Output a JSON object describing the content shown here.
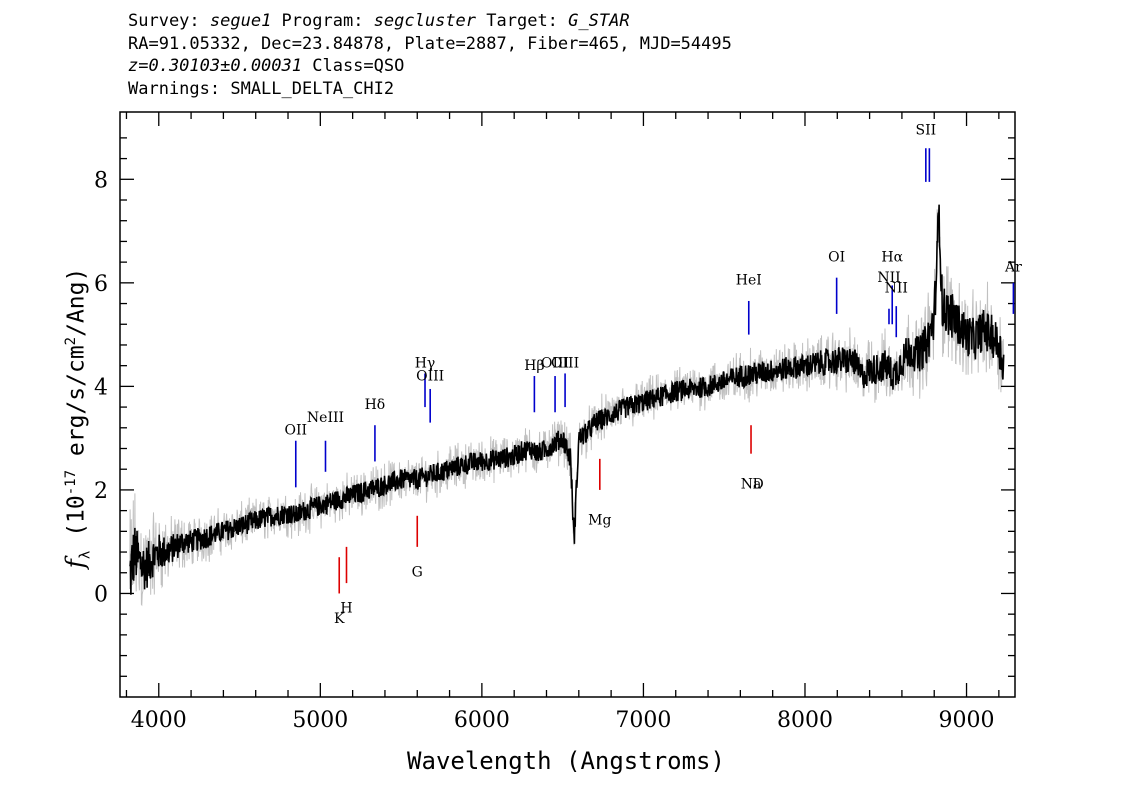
{
  "header": {
    "line1": {
      "survey_label": "Survey: ",
      "survey": "segue1",
      "program_label": " Program: ",
      "program": "segcluster",
      "target_label": " Target: ",
      "target": "G_STAR"
    },
    "line2": "RA=91.05332, Dec=23.84878, Plate=2887, Fiber=465, MJD=54495",
    "line3": {
      "z": "z=0.30103±0.00031",
      "class": " Class=QSO"
    },
    "line4": "Warnings: SMALL_DELTA_CHI2"
  },
  "colors": {
    "spectrum": "#000000",
    "error_band": "#c0c0c0",
    "emission_marker": "#0000cc",
    "absorption_marker": "#dd0000"
  },
  "chart_data": {
    "type": "line",
    "xlabel": "Wavelength (Angstroms)",
    "ylabel": {
      "symbol": "f",
      "sub": "λ",
      "text_before": " (10",
      "exp": "-17",
      "text_mid": " erg/s/cm",
      "exp2": "2",
      "text_after": "/Ang)"
    },
    "xlim": [
      3760,
      9300
    ],
    "ylim": [
      -2.0,
      9.3
    ],
    "xticks": [
      4000,
      5000,
      6000,
      7000,
      8000,
      9000
    ],
    "yticks": [
      0,
      2,
      4,
      6,
      8
    ],
    "series": [
      {
        "x": [
          3820,
          3850,
          3880,
          3920,
          3960,
          4000,
          4050,
          4100,
          4150,
          4200,
          4300,
          4400,
          4500,
          4600,
          4700,
          4800,
          4850,
          4900,
          5000,
          5100,
          5200,
          5300,
          5400,
          5500,
          5600,
          5700,
          5800,
          5900,
          6000,
          6100,
          6200,
          6250,
          6300,
          6350,
          6400,
          6450,
          6500,
          6550,
          6570,
          6600,
          6650,
          6700,
          6800,
          6900,
          7000,
          7100,
          7200,
          7300,
          7400,
          7500,
          7600,
          7700,
          7800,
          7900,
          8000,
          8100,
          8200,
          8300,
          8350,
          8400,
          8500,
          8550,
          8600,
          8650,
          8700,
          8750,
          8800,
          8830,
          8850,
          8900,
          8950,
          9000,
          9050,
          9100,
          9150,
          9200,
          9230
        ],
        "y": [
          0.3,
          0.8,
          0.6,
          0.5,
          0.7,
          0.8,
          0.8,
          0.9,
          1.0,
          1.0,
          1.1,
          1.2,
          1.3,
          1.4,
          1.5,
          1.55,
          1.5,
          1.6,
          1.7,
          1.8,
          1.9,
          2.0,
          2.1,
          2.2,
          2.2,
          2.3,
          2.4,
          2.5,
          2.55,
          2.6,
          2.65,
          2.75,
          2.8,
          2.7,
          2.8,
          2.9,
          3.0,
          2.6,
          1.0,
          3.0,
          3.1,
          3.3,
          3.45,
          3.6,
          3.7,
          3.8,
          3.9,
          3.95,
          4.0,
          4.1,
          4.2,
          4.25,
          4.3,
          4.35,
          4.4,
          4.45,
          4.5,
          4.5,
          4.2,
          4.3,
          4.4,
          4.2,
          4.5,
          4.7,
          4.6,
          4.8,
          5.3,
          7.4,
          5.5,
          5.4,
          5.2,
          5.0,
          4.9,
          5.1,
          5.0,
          4.8,
          4.4
        ],
        "error": [
          1.6,
          1.3,
          1.1,
          1.0,
          0.9,
          0.8,
          0.7,
          0.6,
          0.55,
          0.5,
          0.5,
          0.45,
          0.45,
          0.45,
          0.45,
          0.45,
          0.45,
          0.45,
          0.45,
          0.45,
          0.45,
          0.45,
          0.45,
          0.45,
          0.45,
          0.45,
          0.45,
          0.45,
          0.45,
          0.45,
          0.45,
          0.45,
          0.45,
          0.45,
          0.45,
          0.45,
          0.45,
          0.5,
          0.5,
          0.45,
          0.45,
          0.45,
          0.45,
          0.45,
          0.45,
          0.45,
          0.45,
          0.45,
          0.45,
          0.45,
          0.5,
          0.5,
          0.5,
          0.5,
          0.5,
          0.55,
          0.6,
          0.6,
          0.6,
          0.65,
          0.7,
          0.7,
          0.75,
          0.8,
          0.8,
          0.9,
          1.0,
          1.0,
          1.0,
          1.0,
          0.9,
          0.9,
          0.9,
          0.9,
          0.9,
          0.9,
          0.9
        ]
      }
    ],
    "lines": [
      {
        "label": "OII",
        "kind": "emission",
        "x": 4848,
        "y0": 2.05,
        "y1": 2.95,
        "label_y": 2.95
      },
      {
        "label": "NeIII",
        "kind": "emission",
        "x": 5032,
        "y0": 2.35,
        "y1": 2.95,
        "label_y": 3.2
      },
      {
        "label": "Hδ",
        "kind": "emission",
        "x": 5338,
        "y0": 2.55,
        "y1": 3.25,
        "label_y": 3.45
      },
      {
        "label": "Hγ",
        "kind": "emission",
        "x": 5648,
        "y0": 3.6,
        "y1": 4.25,
        "label_y": 4.25
      },
      {
        "label": "OIII",
        "kind": "emission",
        "x": 5680,
        "y0": 3.3,
        "y1": 3.95,
        "label_y": 4.0
      },
      {
        "label": "Hβ",
        "kind": "emission",
        "x": 6325,
        "y0": 3.5,
        "y1": 4.2,
        "label_y": 4.2
      },
      {
        "label": "OIII",
        "kind": "emission",
        "x": 6453,
        "y0": 3.5,
        "y1": 4.2,
        "label_y": 4.25
      },
      {
        "label": "OIII",
        "kind": "emission",
        "x": 6515,
        "y0": 3.6,
        "y1": 4.25,
        "label_y": 4.25
      },
      {
        "label": "HeI",
        "kind": "emission",
        "x": 7652,
        "y0": 5.0,
        "y1": 5.65,
        "label_y": 5.85
      },
      {
        "label": "OI",
        "kind": "emission",
        "x": 8196,
        "y0": 5.4,
        "y1": 6.1,
        "label_y": 6.3
      },
      {
        "label": "NII",
        "kind": "emission",
        "x": 8520,
        "y0": 5.2,
        "y1": 5.5,
        "label_y": 5.9
      },
      {
        "label": "Hα",
        "kind": "emission",
        "x": 8540,
        "y0": 5.2,
        "y1": 5.95,
        "label_y": 6.3
      },
      {
        "label": "NII",
        "kind": "emission",
        "x": 8565,
        "y0": 4.95,
        "y1": 5.55,
        "label_y": 5.7
      },
      {
        "label": "SII",
        "kind": "emission",
        "x": 8748,
        "y0": 7.95,
        "y1": 8.6,
        "label_y": 8.75
      },
      {
        "label": "",
        "kind": "emission",
        "x": 8770,
        "y0": 7.95,
        "y1": 8.6,
        "label_y": 8.6
      },
      {
        "label": "Ar",
        "kind": "emission",
        "x": 9290,
        "y0": 5.4,
        "y1": 6.0,
        "label_y": 6.1
      },
      {
        "label": "K",
        "kind": "absorption",
        "x": 5117,
        "y0": 0.0,
        "y1": 0.7,
        "label_y": -0.3
      },
      {
        "label": "H",
        "kind": "absorption",
        "x": 5162,
        "y0": 0.2,
        "y1": 0.9,
        "label_y": -0.1
      },
      {
        "label": "G",
        "kind": "absorption",
        "x": 5600,
        "y0": 0.9,
        "y1": 1.5,
        "label_y": 0.6
      },
      {
        "label": "Mg",
        "kind": "absorption",
        "x": 6730,
        "y0": 2.0,
        "y1": 2.6,
        "label_y": 1.6
      },
      {
        "label": "Na",
        "kind": "absorption",
        "x": 7666,
        "y0": 2.7,
        "y1": 3.25,
        "label_y": 2.3
      },
      {
        "label": "D",
        "kind": "absorption",
        "x": 7710,
        "y0": 2.7,
        "y1": 2.7,
        "label_y": 2.3
      }
    ]
  }
}
